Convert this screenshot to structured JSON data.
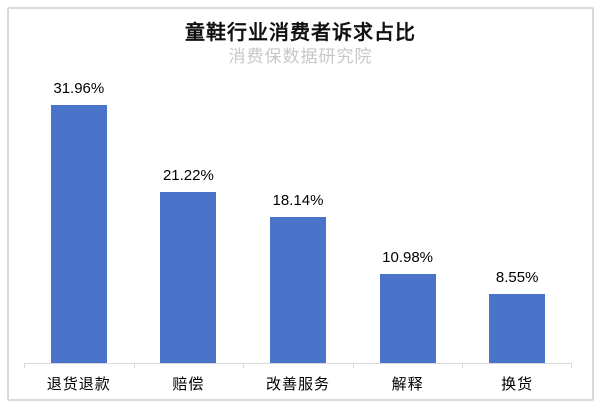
{
  "chart_data": {
    "type": "bar",
    "title": "童鞋行业消费者诉求占比",
    "subtitle": "消费保数据研究院",
    "categories": [
      "退货退款",
      "赔偿",
      "改善服务",
      "解释",
      "换货"
    ],
    "values": [
      31.96,
      21.22,
      18.14,
      10.98,
      8.55
    ],
    "value_labels": [
      "31.96%",
      "21.22%",
      "18.14%",
      "10.98%",
      "8.55%"
    ],
    "ylim": [
      0,
      35
    ],
    "grid": false,
    "legend": "none",
    "y_axis_visible": false,
    "colors": {
      "bar": "#4A74C9",
      "axis": "#D9D9D9",
      "frame_border": "#D9D9D9",
      "title": "#111111",
      "subtitle": "#C7C7C7",
      "data_label": "#000000"
    }
  }
}
